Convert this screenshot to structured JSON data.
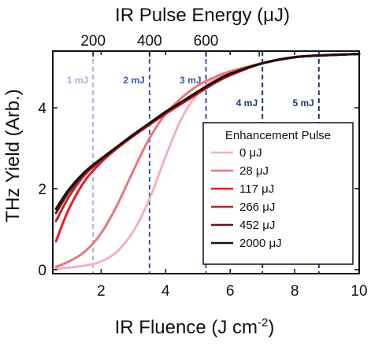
{
  "chart_data": {
    "type": "line",
    "xlabel": "IR Fluence (J cm",
    "xlabel_sup": "-2",
    "xlabel_close": ")",
    "ylabel": "THz Yield (Arb.)",
    "top_xlabel": "IR Pulse Energy (μJ)",
    "xlim": [
      0.5,
      10
    ],
    "ylim": [
      -0.1,
      5.4
    ],
    "x_ticks": [
      2,
      4,
      6,
      8,
      10
    ],
    "y_ticks": [
      0,
      2,
      4
    ],
    "top_ticks": [
      {
        "label": "200",
        "x": 1.75
      },
      {
        "label": "400",
        "x": 3.5
      },
      {
        "label": "600",
        "x": 5.25
      }
    ],
    "top_minor_ticks": [
      3.5,
      6.9
    ],
    "vlines": [
      {
        "label": "1 mJ",
        "x": 1.75,
        "color": "#a8b2dc"
      },
      {
        "label": "2 mJ",
        "x": 3.5,
        "color": "#3d53a8"
      },
      {
        "label": "3 mJ",
        "x": 5.25,
        "color": "#3d53a8"
      },
      {
        "label": "4 mJ",
        "x": 7.0,
        "color": "#22347e"
      },
      {
        "label": "5 mJ",
        "x": 8.75,
        "color": "#22347e"
      }
    ],
    "legend": {
      "title": "Enhancement Pulse",
      "position": "lower-right"
    },
    "series": [
      {
        "name": "0 μJ",
        "color": "#f4b2bc",
        "x": [
          0.6,
          1.0,
          1.5,
          2.0,
          2.5,
          3.0,
          3.5,
          4.0,
          4.5,
          5.0,
          5.5,
          6.0,
          7.0,
          8.0,
          9.0,
          10.0
        ],
        "y": [
          0.02,
          0.05,
          0.1,
          0.2,
          0.45,
          0.95,
          1.75,
          2.8,
          3.75,
          4.35,
          4.7,
          4.88,
          5.1,
          5.25,
          5.3,
          5.33
        ]
      },
      {
        "name": "28 μJ",
        "color": "#e8767c",
        "x": [
          0.6,
          1.0,
          1.5,
          2.0,
          2.5,
          3.0,
          3.5,
          4.0,
          4.5,
          5.0,
          5.5,
          6.0,
          7.0,
          8.0,
          9.0,
          10.0
        ],
        "y": [
          0.07,
          0.2,
          0.45,
          0.9,
          1.6,
          2.45,
          3.25,
          3.85,
          4.25,
          4.55,
          4.75,
          4.9,
          5.1,
          5.25,
          5.3,
          5.33
        ]
      },
      {
        "name": "117 μJ",
        "color": "#e41e26",
        "x": [
          0.6,
          1.0,
          1.5,
          2.0,
          2.5,
          3.0,
          3.5,
          4.0,
          4.5,
          5.0,
          5.5,
          6.0,
          7.0,
          8.0,
          9.0,
          10.0
        ],
        "y": [
          0.7,
          1.5,
          2.2,
          2.65,
          3.0,
          3.3,
          3.58,
          3.85,
          4.1,
          4.35,
          4.6,
          4.8,
          5.1,
          5.25,
          5.3,
          5.33
        ]
      },
      {
        "name": "266 μJ",
        "color": "#b5282e",
        "x": [
          0.6,
          1.0,
          1.5,
          2.0,
          2.5,
          3.0,
          3.5,
          4.0,
          4.5,
          5.0,
          5.5,
          6.0,
          7.0,
          8.0,
          9.0,
          10.0
        ],
        "y": [
          1.2,
          1.8,
          2.35,
          2.7,
          3.02,
          3.32,
          3.6,
          3.88,
          4.13,
          4.38,
          4.62,
          4.82,
          5.1,
          5.25,
          5.3,
          5.33
        ]
      },
      {
        "name": "452 μJ",
        "color": "#6e1418",
        "x": [
          0.6,
          1.0,
          1.5,
          2.0,
          2.5,
          3.0,
          3.5,
          4.0,
          4.5,
          5.0,
          5.5,
          6.0,
          7.0,
          8.0,
          9.0,
          10.0
        ],
        "y": [
          1.4,
          1.92,
          2.4,
          2.72,
          3.03,
          3.33,
          3.61,
          3.89,
          4.14,
          4.39,
          4.63,
          4.83,
          5.1,
          5.25,
          5.3,
          5.33
        ]
      },
      {
        "name": "2000 μJ",
        "color": "#1a1010",
        "x": [
          0.6,
          1.0,
          1.5,
          2.0,
          2.5,
          3.0,
          3.5,
          4.0,
          4.5,
          5.0,
          5.5,
          6.0,
          7.0,
          8.0,
          9.0,
          10.0
        ],
        "y": [
          1.5,
          1.98,
          2.42,
          2.74,
          3.04,
          3.34,
          3.62,
          3.9,
          4.15,
          4.4,
          4.64,
          4.84,
          5.1,
          5.25,
          5.3,
          5.33
        ]
      }
    ]
  }
}
